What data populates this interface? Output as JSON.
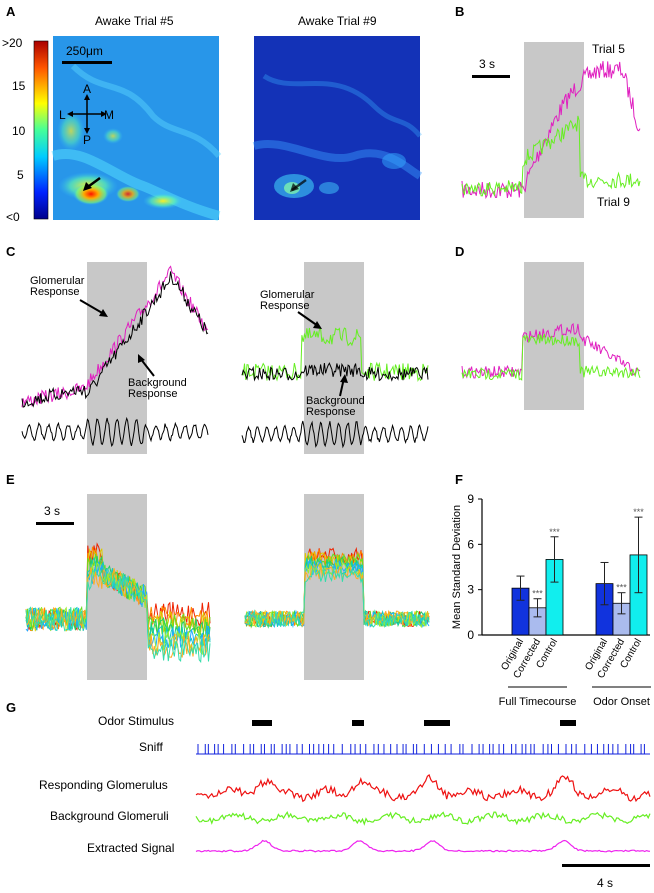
{
  "panels": {
    "A": {
      "letter": "A",
      "colorbar_ticks": [
        ">20",
        "15",
        "10",
        "5",
        "<0"
      ],
      "left_title": "Awake Trial #5",
      "right_title": "Awake Trial #9",
      "scalebar": "250μm",
      "compass": {
        "A": "A",
        "P": "P",
        "L": "L",
        "M": "M"
      }
    },
    "B": {
      "letter": "B",
      "scalebar": "3 s",
      "trial5": "Trial 5",
      "trial9": "Trial 9"
    },
    "C": {
      "letter": "C",
      "left_glom_1": "Glomerular",
      "left_glom_2": "Response",
      "left_bg_1": "Background",
      "left_bg_2": "Response",
      "right_glom_1": "Glomerular",
      "right_glom_2": "Response",
      "right_bg_1": "Background",
      "right_bg_2": "Response"
    },
    "D": {
      "letter": "D"
    },
    "E": {
      "letter": "E",
      "scalebar": "3 s"
    },
    "F": {
      "letter": "F"
    },
    "G": {
      "letter": "G",
      "rows": [
        "Odor Stimulus",
        "Sniff",
        "Responding Glomerulus",
        "Background Glomeruli",
        "Extracted Signal"
      ],
      "scalebar": "4 s"
    }
  },
  "colors": {
    "magenta": "#e020c0",
    "green": "#66ee22",
    "black": "#000000",
    "gray": "#c8c8c8",
    "red": "#ee1111",
    "blue": "#1122dd",
    "cyan": "#22eedd",
    "magenta_g": "#ee22ee"
  },
  "chart_data": {
    "type": "bar",
    "ylabel": "Mean Standard Deviation",
    "ylim": [
      0,
      9
    ],
    "yticks": [
      "0",
      "3",
      "6",
      "9"
    ],
    "categories": [
      "Original",
      "Corrected",
      "Control"
    ],
    "groups": [
      "Full Timecourse",
      "Odor Onset"
    ],
    "series": [
      {
        "name": "Full Timecourse",
        "values": [
          3.1,
          1.8,
          5.0
        ],
        "errors": [
          0.8,
          0.6,
          1.5
        ],
        "stars": [
          "",
          "***",
          "***"
        ]
      },
      {
        "name": "Odor Onset",
        "values": [
          3.4,
          2.1,
          5.3
        ],
        "errors": [
          1.4,
          0.7,
          2.5
        ],
        "stars": [
          "",
          "***",
          "***"
        ]
      }
    ],
    "bar_colors": [
      "#1133dd",
      "#aabbee",
      "#11eeee"
    ]
  }
}
